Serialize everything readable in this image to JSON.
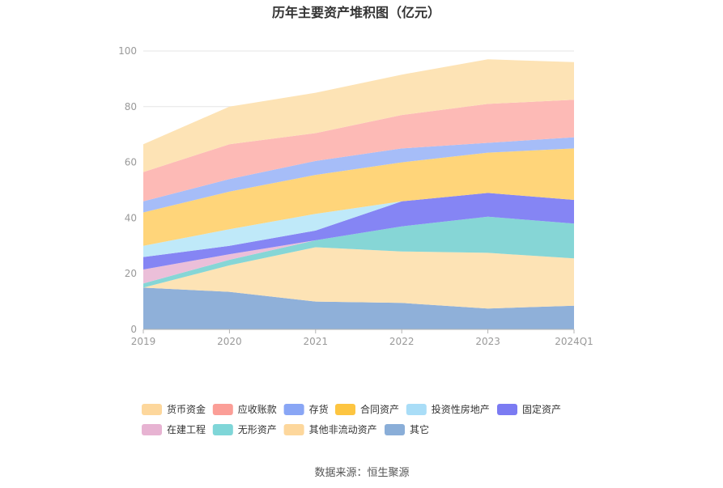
{
  "chart_data": {
    "type": "area",
    "stacked": true,
    "title": "历年主要资产堆积图（亿元）",
    "categories": [
      "2019",
      "2020",
      "2021",
      "2022",
      "2023",
      "2024Q1"
    ],
    "ylim": [
      0,
      100
    ],
    "yticks": [
      0,
      20,
      40,
      60,
      80,
      100
    ],
    "grid": true,
    "legend_position": "bottom",
    "series": [
      {
        "name": "其它",
        "color": "#8fb0d9",
        "values": [
          15,
          13.5,
          10,
          9.5,
          7.5,
          8.5
        ]
      },
      {
        "name": "其他非流动资产",
        "color": "#fde3b5",
        "values": [
          0,
          9.5,
          19.5,
          18.5,
          20,
          17
        ]
      },
      {
        "name": "无形资产",
        "color": "#86d6d6",
        "values": [
          1.5,
          2,
          2.5,
          9,
          13,
          12.5
        ]
      },
      {
        "name": "在建工程",
        "color": "#ebbfd9",
        "values": [
          5,
          2,
          0,
          0,
          0,
          0
        ]
      },
      {
        "name": "固定资产",
        "color": "#8585f4",
        "values": [
          4.5,
          3,
          3.5,
          9,
          8.5,
          8.5
        ]
      },
      {
        "name": "投资性房地产",
        "color": "#bfe9f9",
        "values": [
          4,
          6,
          6,
          0,
          0,
          0
        ]
      },
      {
        "name": "合同资产",
        "color": "#ffd57a",
        "values": [
          12,
          13.5,
          14,
          14,
          14.5,
          18.5
        ]
      },
      {
        "name": "存货",
        "color": "#a6bdf8",
        "values": [
          4,
          4.5,
          5,
          5,
          3.5,
          4
        ]
      },
      {
        "name": "应收账款",
        "color": "#fdbab6",
        "values": [
          10.5,
          12.5,
          10,
          12,
          14,
          13.5
        ]
      },
      {
        "name": "货币资金",
        "color": "#fde3b5",
        "values": [
          10,
          13.5,
          14.5,
          14.5,
          16,
          13.5
        ]
      }
    ]
  },
  "legend": [
    {
      "name": "货币资金",
      "color": "#fdd79c"
    },
    {
      "name": "应收账款",
      "color": "#fb9e97"
    },
    {
      "name": "存货",
      "color": "#89a6f5"
    },
    {
      "name": "合同资产",
      "color": "#fdc541"
    },
    {
      "name": "投资性房地产",
      "color": "#a9ddf7"
    },
    {
      "name": "固定资产",
      "color": "#7b7bf2"
    },
    {
      "name": "在建工程",
      "color": "#e7b3d2"
    },
    {
      "name": "无形资产",
      "color": "#7fd6d8"
    },
    {
      "name": "其他非流动资产",
      "color": "#fdd79c"
    },
    {
      "name": "其它",
      "color": "#8aaed8"
    }
  ],
  "source": "数据来源：恒生聚源"
}
